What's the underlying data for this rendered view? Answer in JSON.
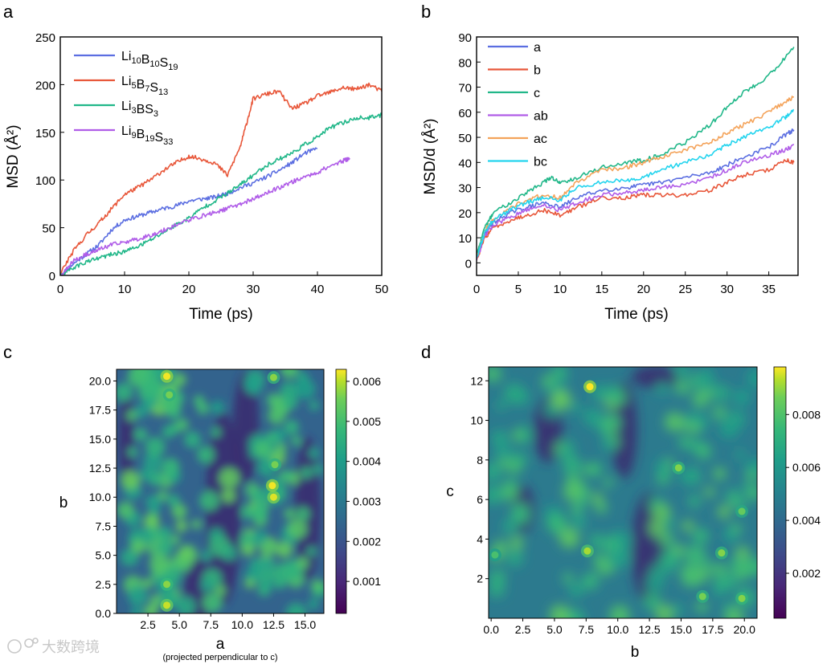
{
  "chart_data": [
    {
      "panel": "a",
      "type": "line",
      "xlabel": "Time (ps)",
      "ylabel": "MSD (Å²)",
      "xlim": [
        0,
        50
      ],
      "ylim": [
        0,
        250
      ],
      "xticks": [
        0,
        10,
        20,
        30,
        40,
        50
      ],
      "yticks": [
        0,
        50,
        100,
        150,
        200,
        250
      ],
      "legend_position": "top-left",
      "grid": false,
      "series": [
        {
          "name": "Li10B10S19",
          "color": "#5b6ee1",
          "x": [
            0,
            2,
            4,
            6,
            8,
            10,
            12,
            14,
            16,
            18,
            20,
            22,
            24,
            26,
            28,
            30,
            32,
            34,
            36,
            38,
            40
          ],
          "y": [
            0,
            12,
            22,
            32,
            48,
            58,
            62,
            66,
            70,
            73,
            78,
            80,
            82,
            86,
            92,
            97,
            103,
            110,
            118,
            128,
            133
          ]
        },
        {
          "name": "Li5B7S13",
          "color": "#e8573a",
          "x": [
            0,
            2,
            4,
            6,
            8,
            10,
            12,
            14,
            16,
            18,
            20,
            22,
            24,
            26,
            28,
            29,
            30,
            32,
            34,
            36,
            38,
            40,
            42,
            44,
            46,
            48,
            50
          ],
          "y": [
            2,
            25,
            42,
            55,
            70,
            85,
            92,
            100,
            110,
            118,
            125,
            122,
            118,
            105,
            135,
            160,
            185,
            190,
            193,
            175,
            180,
            188,
            192,
            197,
            195,
            200,
            193
          ]
        },
        {
          "name": "Li3BS3",
          "color": "#21b789",
          "x": [
            0,
            2,
            4,
            6,
            8,
            10,
            12,
            14,
            16,
            18,
            20,
            22,
            24,
            26,
            28,
            30,
            32,
            34,
            36,
            38,
            40,
            42,
            44,
            46,
            48,
            50
          ],
          "y": [
            0,
            8,
            14,
            18,
            22,
            25,
            30,
            37,
            45,
            53,
            60,
            70,
            78,
            86,
            95,
            105,
            115,
            122,
            128,
            137,
            145,
            155,
            160,
            165,
            165,
            168
          ]
        },
        {
          "name": "Li9B19S33",
          "color": "#b05de8",
          "x": [
            0,
            2,
            4,
            6,
            8,
            10,
            12,
            14,
            16,
            18,
            20,
            22,
            24,
            26,
            28,
            30,
            32,
            34,
            36,
            38,
            40,
            42,
            44,
            45
          ],
          "y": [
            0,
            15,
            22,
            27,
            32,
            35,
            38,
            42,
            47,
            53,
            58,
            62,
            66,
            70,
            75,
            80,
            86,
            92,
            98,
            103,
            108,
            115,
            120,
            123
          ]
        }
      ]
    },
    {
      "panel": "b",
      "type": "line",
      "xlabel": "Time (ps)",
      "ylabel": "MSD/d (Å²)",
      "xlim": [
        0,
        38.5
      ],
      "ylim": [
        -5,
        90
      ],
      "xticks": [
        0,
        5,
        10,
        15,
        20,
        25,
        30,
        35
      ],
      "yticks": [
        0,
        10,
        20,
        30,
        40,
        50,
        60,
        70,
        80,
        90
      ],
      "legend_position": "top-left",
      "grid": false,
      "series": [
        {
          "name": "a",
          "color": "#5b6ee1",
          "x": [
            0,
            1,
            2,
            4,
            6,
            8,
            10,
            12,
            15,
            18,
            20,
            22,
            25,
            28,
            30,
            32,
            35,
            37,
            38
          ],
          "y": [
            2,
            12,
            16,
            20,
            22,
            24,
            22,
            26,
            29,
            30,
            31,
            32,
            34,
            36,
            39,
            42,
            46,
            51,
            53
          ]
        },
        {
          "name": "b",
          "color": "#e8573a",
          "x": [
            0,
            1,
            2,
            4,
            6,
            8,
            10,
            12,
            15,
            18,
            20,
            22,
            25,
            28,
            30,
            32,
            35,
            37,
            38
          ],
          "y": [
            1,
            10,
            14,
            17,
            19,
            21,
            19,
            22,
            26,
            26,
            27,
            27,
            27,
            29,
            32,
            35,
            37,
            41,
            40
          ]
        },
        {
          "name": "c",
          "color": "#21b789",
          "x": [
            0,
            1,
            2,
            4,
            6,
            8,
            9,
            10,
            12,
            15,
            18,
            20,
            22,
            25,
            28,
            30,
            32,
            34,
            36,
            38
          ],
          "y": [
            3,
            14,
            20,
            24,
            28,
            32,
            34,
            32,
            34,
            38,
            40,
            41,
            43,
            48,
            55,
            62,
            68,
            72,
            78,
            86
          ]
        },
        {
          "name": "ab",
          "color": "#b05de8",
          "x": [
            0,
            1,
            2,
            4,
            6,
            8,
            10,
            12,
            15,
            18,
            20,
            22,
            25,
            28,
            30,
            32,
            35,
            37,
            38
          ],
          "y": [
            1,
            11,
            15,
            18,
            21,
            23,
            21,
            24,
            27,
            28,
            29,
            30,
            31,
            34,
            37,
            40,
            43,
            45,
            47
          ]
        },
        {
          "name": "ac",
          "color": "#f4a35a",
          "x": [
            0,
            1,
            2,
            4,
            6,
            8,
            10,
            12,
            15,
            18,
            20,
            22,
            25,
            28,
            30,
            32,
            35,
            37,
            38
          ],
          "y": [
            2,
            13,
            17,
            22,
            25,
            27,
            26,
            32,
            37,
            38,
            40,
            42,
            45,
            48,
            52,
            55,
            60,
            64,
            66
          ]
        },
        {
          "name": "bc",
          "color": "#23d4ee",
          "x": [
            0,
            1,
            2,
            4,
            6,
            8,
            10,
            12,
            15,
            18,
            20,
            22,
            25,
            28,
            30,
            32,
            35,
            37,
            38
          ],
          "y": [
            2,
            12,
            17,
            21,
            24,
            26,
            25,
            30,
            32,
            33,
            34,
            37,
            40,
            43,
            47,
            50,
            54,
            58,
            61
          ]
        }
      ]
    },
    {
      "panel": "c",
      "type": "heatmap",
      "xlabel": "a",
      "xlabel_note": "(projected perpendicular to c)",
      "ylabel": "b",
      "xlim": [
        0,
        16.5
      ],
      "ylim": [
        0,
        21
      ],
      "xticks": [
        "2.5",
        "5.0",
        "7.5",
        "10.0",
        "12.5",
        "15.0"
      ],
      "yticks": [
        "0.0",
        "2.5",
        "5.0",
        "7.5",
        "10.0",
        "12.5",
        "15.0",
        "17.5",
        "20.0"
      ],
      "colormap": "viridis",
      "colorbar_ticks": [
        "0.001",
        "0.002",
        "0.003",
        "0.004",
        "0.005",
        "0.006"
      ],
      "colorbar_range": [
        0.0002,
        0.0063
      ],
      "hotspots": [
        {
          "x": 4.0,
          "y": 20.4,
          "value": 0.0062
        },
        {
          "x": 4.2,
          "y": 18.8,
          "value": 0.005
        },
        {
          "x": 4.0,
          "y": 0.7,
          "value": 0.0058
        },
        {
          "x": 4.0,
          "y": 2.5,
          "value": 0.0052
        },
        {
          "x": 12.4,
          "y": 11.0,
          "value": 0.0062
        },
        {
          "x": 12.5,
          "y": 10.0,
          "value": 0.006
        },
        {
          "x": 12.6,
          "y": 12.8,
          "value": 0.005
        },
        {
          "x": 12.5,
          "y": 20.3,
          "value": 0.0052
        }
      ]
    },
    {
      "panel": "d",
      "type": "heatmap",
      "xlabel": "b",
      "ylabel": "c",
      "xlim": [
        -0.2,
        21
      ],
      "ylim": [
        0,
        12.7
      ],
      "xticks": [
        "0.0",
        "2.5",
        "5.0",
        "7.5",
        "10.0",
        "12.5",
        "15.0",
        "17.5",
        "20.0"
      ],
      "yticks": [
        "2",
        "4",
        "6",
        "8",
        "10",
        "12"
      ],
      "colormap": "viridis",
      "colorbar_ticks": [
        "0.002",
        "0.004",
        "0.006",
        "0.008"
      ],
      "colorbar_range": [
        0.0003,
        0.0098
      ],
      "hotspots": [
        {
          "x": 7.8,
          "y": 11.7,
          "value": 0.0098
        },
        {
          "x": 7.6,
          "y": 3.4,
          "value": 0.0085
        },
        {
          "x": 14.8,
          "y": 7.6,
          "value": 0.008
        },
        {
          "x": 18.2,
          "y": 3.3,
          "value": 0.008
        },
        {
          "x": 16.7,
          "y": 1.1,
          "value": 0.0078
        },
        {
          "x": 19.8,
          "y": 1.0,
          "value": 0.008
        },
        {
          "x": 19.8,
          "y": 5.4,
          "value": 0.0075
        },
        {
          "x": 0.3,
          "y": 3.2,
          "value": 0.007
        }
      ]
    }
  ],
  "panels": {
    "a": {
      "letter": "a",
      "xlabel": "Time (ps)",
      "ylabel": "MSD (Å²)",
      "legend": [
        {
          "base": "Li",
          "s1": "10",
          "m": "B",
          "s2": "10",
          "e": "S",
          "s3": "19"
        },
        {
          "base": "Li",
          "s1": "5",
          "m": "B",
          "s2": "7",
          "e": "S",
          "s3": "13"
        },
        {
          "base": "Li",
          "s1": "3",
          "m": "BS",
          "s2": "3",
          "e": "",
          "s3": ""
        },
        {
          "base": "Li",
          "s1": "9",
          "m": "B",
          "s2": "19",
          "e": "S",
          "s3": "33"
        }
      ]
    },
    "b": {
      "letter": "b",
      "xlabel": "Time (ps)",
      "ylabel": "MSD/d (Å²)"
    },
    "c": {
      "letter": "c",
      "xlabel": "a",
      "xlabel_note": "(projected perpendicular to c)",
      "ylabel": "b"
    },
    "d": {
      "letter": "d",
      "xlabel": "b",
      "ylabel": "c"
    }
  },
  "watermark": {
    "text": "大数跨境",
    "color": "#c8c8c8"
  }
}
